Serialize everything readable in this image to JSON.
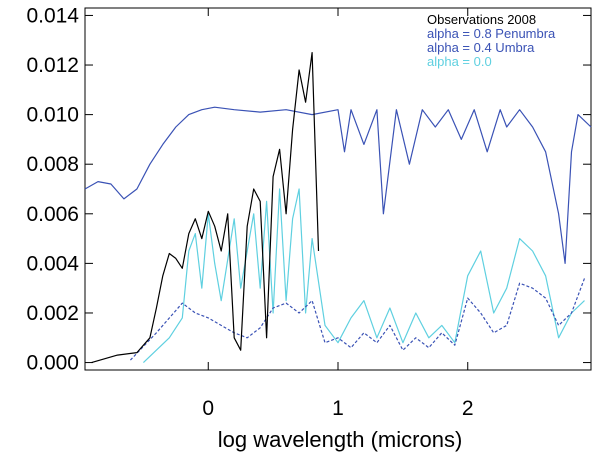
{
  "chart_data": {
    "type": "line",
    "title": "",
    "xlabel": "log wavelength (microns)",
    "ylabel": "",
    "xlim": [
      -0.95,
      2.95
    ],
    "ylim": [
      -0.0003,
      0.0143
    ],
    "x_ticks": [
      "0",
      "1",
      "2"
    ],
    "x_tick_values": [
      0,
      1,
      2
    ],
    "y_ticks": [
      "0.000",
      "0.002",
      "0.004",
      "0.006",
      "0.008",
      "0.010",
      "0.012",
      "0.014"
    ],
    "y_tick_values": [
      0.0,
      0.002,
      0.004,
      0.006,
      0.008,
      0.01,
      0.012,
      0.014
    ],
    "grid": false,
    "legend_position": "top-right",
    "legend": [
      {
        "label": "Observations 2008",
        "color": "#000000"
      },
      {
        "label": "alpha = 0.8 Penumbra",
        "color": "#3a52b5"
      },
      {
        "label": "alpha = 0.4 Umbra",
        "color": "#3a52b5"
      },
      {
        "label": "alpha = 0.0",
        "color": "#5fd0e0"
      }
    ],
    "series": [
      {
        "name": "Observations 2008",
        "color": "#000000",
        "style": "solid",
        "x": [
          -0.9,
          -0.7,
          -0.55,
          -0.45,
          -0.4,
          -0.35,
          -0.3,
          -0.25,
          -0.2,
          -0.15,
          -0.1,
          -0.05,
          0.0,
          0.05,
          0.1,
          0.15,
          0.2,
          0.25,
          0.3,
          0.35,
          0.4,
          0.45,
          0.5,
          0.55,
          0.6,
          0.65,
          0.7,
          0.75,
          0.8,
          0.85
        ],
        "y": [
          0.0,
          0.0003,
          0.0004,
          0.001,
          0.0022,
          0.0035,
          0.0044,
          0.0042,
          0.0038,
          0.0052,
          0.0058,
          0.005,
          0.0061,
          0.0055,
          0.0045,
          0.006,
          0.001,
          0.0005,
          0.0055,
          0.007,
          0.0065,
          0.001,
          0.0075,
          0.0086,
          0.006,
          0.0094,
          0.0118,
          0.0105,
          0.0125,
          0.0045
        ]
      },
      {
        "name": "alpha = 0.8 Penumbra",
        "color": "#3a52b5",
        "style": "solid",
        "x": [
          -0.95,
          -0.85,
          -0.75,
          -0.65,
          -0.55,
          -0.45,
          -0.35,
          -0.25,
          -0.15,
          -0.05,
          0.05,
          0.2,
          0.4,
          0.6,
          0.8,
          1.0,
          1.05,
          1.1,
          1.2,
          1.3,
          1.35,
          1.45,
          1.55,
          1.65,
          1.75,
          1.85,
          1.95,
          2.05,
          2.15,
          2.25,
          2.3,
          2.4,
          2.5,
          2.6,
          2.7,
          2.75,
          2.8,
          2.85,
          2.95
        ],
        "y": [
          0.007,
          0.0073,
          0.0072,
          0.0066,
          0.007,
          0.008,
          0.0088,
          0.0095,
          0.01,
          0.0102,
          0.0103,
          0.0102,
          0.0101,
          0.0102,
          0.01,
          0.0102,
          0.0085,
          0.0102,
          0.0088,
          0.0102,
          0.006,
          0.0102,
          0.008,
          0.0102,
          0.0095,
          0.0102,
          0.009,
          0.0102,
          0.0085,
          0.0102,
          0.0095,
          0.0102,
          0.0095,
          0.0085,
          0.006,
          0.004,
          0.0085,
          0.01,
          0.0095
        ]
      },
      {
        "name": "alpha = 0.4 Umbra",
        "color": "#3a52b5",
        "style": "dashed",
        "x": [
          -0.6,
          -0.4,
          -0.2,
          -0.1,
          0.0,
          0.1,
          0.2,
          0.3,
          0.4,
          0.5,
          0.6,
          0.7,
          0.8,
          0.9,
          1.0,
          1.1,
          1.2,
          1.3,
          1.4,
          1.5,
          1.6,
          1.7,
          1.8,
          1.9,
          2.0,
          2.1,
          2.2,
          2.3,
          2.4,
          2.5,
          2.6,
          2.7,
          2.8,
          2.9
        ],
        "y": [
          0.0001,
          0.0012,
          0.0024,
          0.002,
          0.0018,
          0.0015,
          0.0012,
          0.001,
          0.0014,
          0.0022,
          0.0024,
          0.002,
          0.0025,
          0.0008,
          0.001,
          0.0006,
          0.0012,
          0.0008,
          0.0015,
          0.0005,
          0.001,
          0.0006,
          0.0012,
          0.0007,
          0.0026,
          0.002,
          0.0012,
          0.0015,
          0.0032,
          0.003,
          0.0026,
          0.0015,
          0.002,
          0.0034
        ]
      },
      {
        "name": "alpha = 0.0",
        "color": "#5fd0e0",
        "style": "solid",
        "x": [
          -0.5,
          -0.3,
          -0.2,
          -0.15,
          -0.1,
          -0.05,
          0.0,
          0.05,
          0.1,
          0.2,
          0.25,
          0.3,
          0.35,
          0.4,
          0.45,
          0.5,
          0.55,
          0.6,
          0.65,
          0.7,
          0.75,
          0.8,
          0.9,
          1.0,
          1.1,
          1.2,
          1.3,
          1.4,
          1.5,
          1.6,
          1.7,
          1.8,
          1.9,
          2.0,
          2.1,
          2.2,
          2.3,
          2.4,
          2.5,
          2.6,
          2.7,
          2.8,
          2.9
        ],
        "y": [
          0.0,
          0.001,
          0.0018,
          0.0045,
          0.0052,
          0.003,
          0.006,
          0.004,
          0.0025,
          0.0058,
          0.003,
          0.0045,
          0.006,
          0.003,
          0.0065,
          0.002,
          0.007,
          0.0025,
          0.0058,
          0.007,
          0.002,
          0.005,
          0.0015,
          0.0008,
          0.0018,
          0.0025,
          0.001,
          0.0022,
          0.0008,
          0.002,
          0.001,
          0.0015,
          0.0008,
          0.0035,
          0.0045,
          0.002,
          0.003,
          0.005,
          0.0045,
          0.0035,
          0.001,
          0.002,
          0.0025
        ]
      }
    ]
  }
}
